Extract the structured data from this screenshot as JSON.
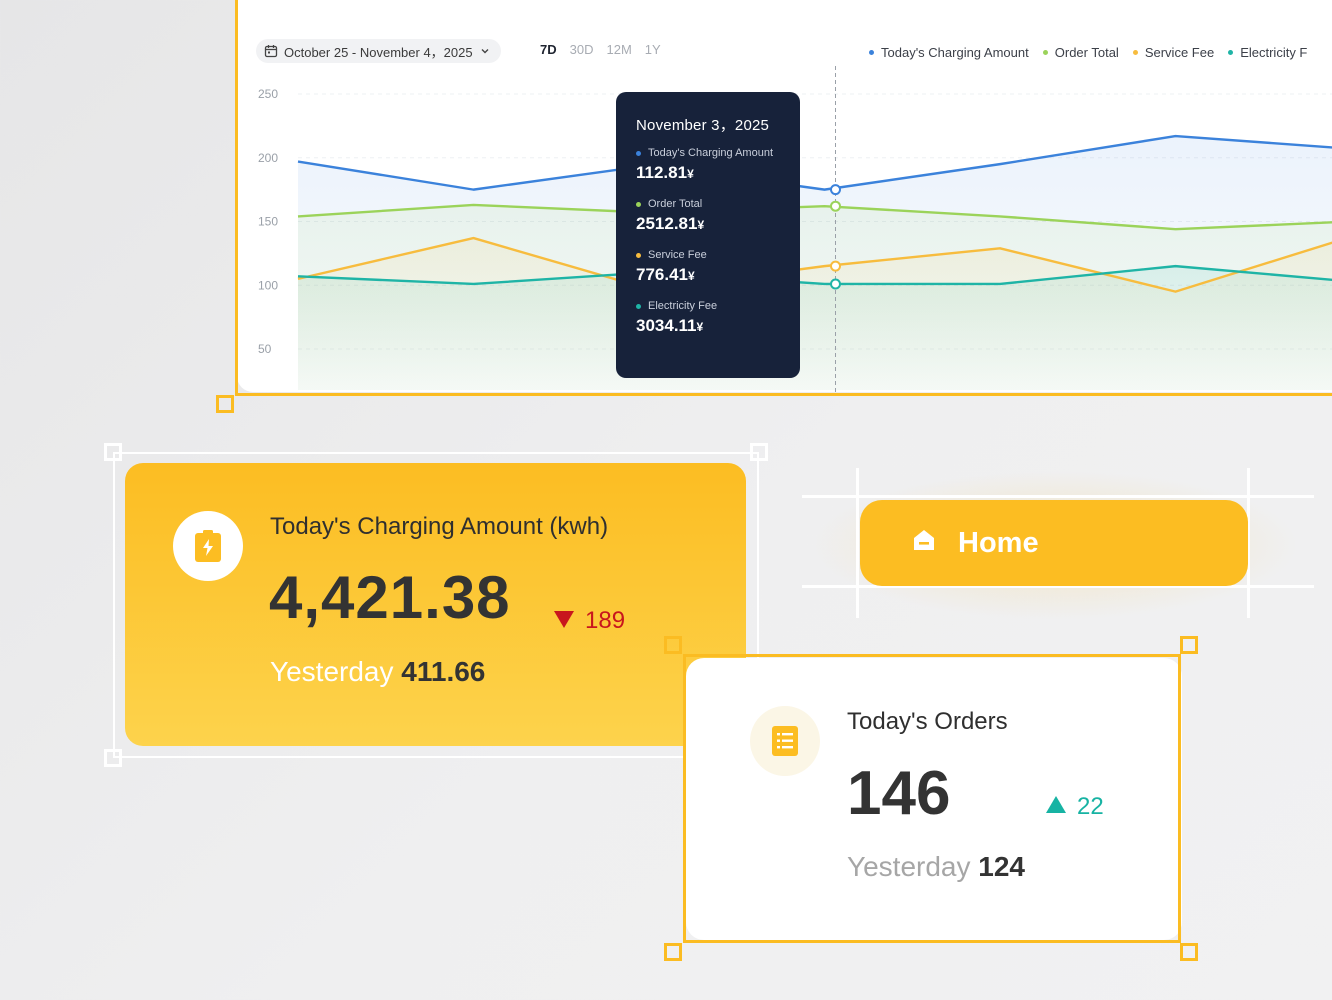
{
  "chart_card": {
    "date_range": "October 25 - November 4，2025",
    "range_tabs": [
      "7D",
      "30D",
      "12M",
      "1Y"
    ],
    "active_tab": "7D",
    "legend": [
      {
        "label": "Today's Charging Amount",
        "color": "#3b82db"
      },
      {
        "label": "Order Total",
        "color": "#9bd35a"
      },
      {
        "label": "Service Fee",
        "color": "#f7bc3e"
      },
      {
        "label": "Electricity F",
        "color": "#1fb4a6"
      }
    ],
    "tooltip": {
      "date": "November 3，2025",
      "rows": [
        {
          "label": "Today's Charging Amount",
          "value": "112.81",
          "unit": "¥",
          "color": "#3b82db"
        },
        {
          "label": "Order Total",
          "value": "2512.81",
          "unit": "¥",
          "color": "#9bd35a"
        },
        {
          "label": "Service Fee",
          "value": "776.41",
          "unit": "¥",
          "color": "#f7bc3e"
        },
        {
          "label": "Electricity Fee",
          "value": "3034.11",
          "unit": "¥",
          "color": "#1fb4a6"
        }
      ]
    }
  },
  "chart_data": {
    "type": "line",
    "yticks": [
      "250",
      "200",
      "150",
      "100",
      "50"
    ],
    "ylim": [
      25,
      250
    ],
    "x": [
      0,
      1,
      2,
      3,
      4,
      5,
      6,
      7
    ],
    "highlight_index": 3,
    "series": [
      {
        "name": "Today's Charging Amount",
        "color": "#3b82db",
        "values": [
          197,
          175,
          194,
          175,
          195,
          217,
          207,
          205
        ]
      },
      {
        "name": "Order Total",
        "color": "#9bd35a",
        "values": [
          154,
          163,
          157,
          162,
          154,
          144,
          150,
          152
        ]
      },
      {
        "name": "Service Fee",
        "color": "#f7bc3e",
        "values": [
          105,
          137,
          97,
          115,
          129,
          95,
          138,
          135
        ]
      },
      {
        "name": "Electricity Fee",
        "color": "#1fb4a6",
        "values": [
          107,
          101,
          110,
          101,
          101,
          115,
          103,
          100
        ]
      }
    ]
  },
  "charge_card": {
    "title": "Today's Charging Amount (kwh)",
    "value": "4,421.38",
    "delta": "189",
    "yesterday_label": "Yesterday",
    "yesterday_value": "411.66",
    "icon": "battery-charging-icon"
  },
  "home_button": {
    "label": "Home",
    "icon": "home-icon"
  },
  "orders_card": {
    "title": "Today's Orders",
    "value": "146",
    "delta": "22",
    "yesterday_label": "Yesterday",
    "yesterday_value": "124",
    "icon": "list-document-icon"
  },
  "colors": {
    "accent": "#fcbd22",
    "down": "#c8161d",
    "up": "#17b3a3",
    "tooltip_bg": "#17223a"
  }
}
